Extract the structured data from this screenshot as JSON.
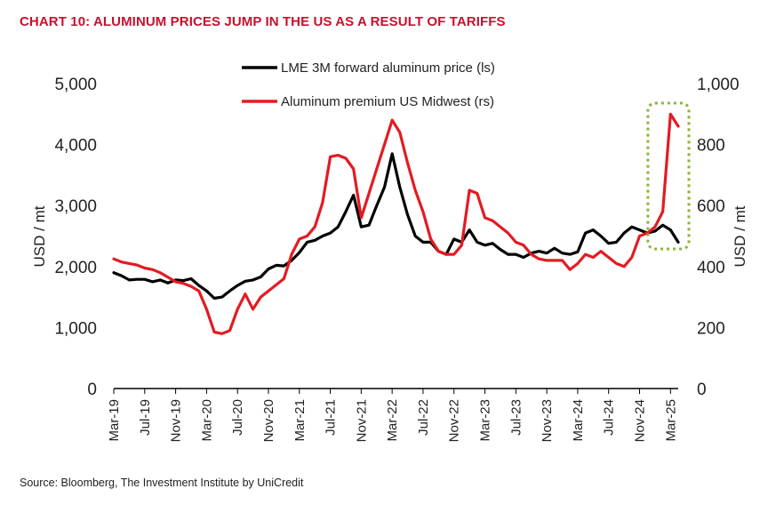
{
  "title": "CHART 10: ALUMINUM PRICES JUMP IN THE US AS A RESULT OF TARIFFS",
  "source": "Source: Bloomberg, The Investment Institute by UniCredit",
  "colors": {
    "title": "#c8102e",
    "series_black": "#000000",
    "series_red": "#e31b23",
    "highlight_box": "#8db33a"
  },
  "chart_data": {
    "type": "line",
    "x_tick_labels": [
      "Mar-19",
      "Jul-19",
      "Nov-19",
      "Mar-20",
      "Jul-20",
      "Nov-20",
      "Mar-21",
      "Jul-21",
      "Nov-21",
      "Mar-22",
      "Jul-22",
      "Nov-22",
      "Mar-23",
      "Jul-23",
      "Nov-23",
      "Mar-24",
      "Jul-24",
      "Nov-24",
      "Mar-25"
    ],
    "x_range": [
      "2019-03",
      "2025-04"
    ],
    "y_left": {
      "label": "USD / mt",
      "lim": [
        0,
        5000
      ],
      "ticks": [
        "0",
        "1,000",
        "2,000",
        "3,000",
        "4,000",
        "5,000"
      ]
    },
    "y_right": {
      "label": "USD / mt",
      "lim": [
        0,
        1000
      ],
      "ticks": [
        "0",
        "200",
        "400",
        "600",
        "800",
        "1,000"
      ]
    },
    "legend_position": "top-center",
    "highlight": {
      "from": "2025-01",
      "to": "2025-04",
      "style": "dashed box"
    },
    "series": [
      {
        "name": "LME 3M forward aluminum price (ls)",
        "axis": "left",
        "color": "#000000",
        "points": [
          [
            "2019-03",
            1900
          ],
          [
            "2019-04",
            1850
          ],
          [
            "2019-05",
            1780
          ],
          [
            "2019-06",
            1790
          ],
          [
            "2019-07",
            1790
          ],
          [
            "2019-08",
            1750
          ],
          [
            "2019-09",
            1780
          ],
          [
            "2019-10",
            1730
          ],
          [
            "2019-11",
            1780
          ],
          [
            "2019-12",
            1770
          ],
          [
            "2020-01",
            1800
          ],
          [
            "2020-02",
            1690
          ],
          [
            "2020-03",
            1600
          ],
          [
            "2020-04",
            1480
          ],
          [
            "2020-05",
            1500
          ],
          [
            "2020-06",
            1600
          ],
          [
            "2020-07",
            1690
          ],
          [
            "2020-08",
            1760
          ],
          [
            "2020-09",
            1780
          ],
          [
            "2020-10",
            1830
          ],
          [
            "2020-11",
            1960
          ],
          [
            "2020-12",
            2020
          ],
          [
            "2021-01",
            2010
          ],
          [
            "2021-02",
            2100
          ],
          [
            "2021-03",
            2230
          ],
          [
            "2021-04",
            2400
          ],
          [
            "2021-05",
            2430
          ],
          [
            "2021-06",
            2500
          ],
          [
            "2021-07",
            2550
          ],
          [
            "2021-08",
            2650
          ],
          [
            "2021-09",
            2900
          ],
          [
            "2021-10",
            3170
          ],
          [
            "2021-11",
            2650
          ],
          [
            "2021-12",
            2680
          ],
          [
            "2022-01",
            3000
          ],
          [
            "2022-02",
            3300
          ],
          [
            "2022-03",
            3850
          ],
          [
            "2022-04",
            3300
          ],
          [
            "2022-05",
            2850
          ],
          [
            "2022-06",
            2500
          ],
          [
            "2022-07",
            2400
          ],
          [
            "2022-08",
            2400
          ],
          [
            "2022-09",
            2250
          ],
          [
            "2022-10",
            2200
          ],
          [
            "2022-11",
            2450
          ],
          [
            "2022-12",
            2400
          ],
          [
            "2023-01",
            2600
          ],
          [
            "2023-02",
            2400
          ],
          [
            "2023-03",
            2350
          ],
          [
            "2023-04",
            2380
          ],
          [
            "2023-05",
            2280
          ],
          [
            "2023-06",
            2200
          ],
          [
            "2023-07",
            2200
          ],
          [
            "2023-08",
            2150
          ],
          [
            "2023-09",
            2220
          ],
          [
            "2023-10",
            2250
          ],
          [
            "2023-11",
            2220
          ],
          [
            "2023-12",
            2300
          ],
          [
            "2024-01",
            2220
          ],
          [
            "2024-02",
            2200
          ],
          [
            "2024-03",
            2240
          ],
          [
            "2024-04",
            2550
          ],
          [
            "2024-05",
            2600
          ],
          [
            "2024-06",
            2500
          ],
          [
            "2024-07",
            2380
          ],
          [
            "2024-08",
            2400
          ],
          [
            "2024-09",
            2550
          ],
          [
            "2024-10",
            2650
          ],
          [
            "2024-11",
            2600
          ],
          [
            "2024-12",
            2550
          ],
          [
            "2025-01",
            2580
          ],
          [
            "2025-02",
            2680
          ],
          [
            "2025-03",
            2600
          ],
          [
            "2025-04",
            2400
          ]
        ]
      },
      {
        "name": "Aluminum premium US Midwest (rs)",
        "axis": "right",
        "color": "#e31b23",
        "points": [
          [
            "2019-03",
            425
          ],
          [
            "2019-04",
            415
          ],
          [
            "2019-05",
            410
          ],
          [
            "2019-06",
            405
          ],
          [
            "2019-07",
            395
          ],
          [
            "2019-08",
            390
          ],
          [
            "2019-09",
            380
          ],
          [
            "2019-10",
            365
          ],
          [
            "2019-11",
            350
          ],
          [
            "2019-12",
            345
          ],
          [
            "2020-01",
            335
          ],
          [
            "2020-02",
            320
          ],
          [
            "2020-03",
            260
          ],
          [
            "2020-04",
            185
          ],
          [
            "2020-05",
            180
          ],
          [
            "2020-06",
            190
          ],
          [
            "2020-07",
            260
          ],
          [
            "2020-08",
            310
          ],
          [
            "2020-09",
            260
          ],
          [
            "2020-10",
            300
          ],
          [
            "2020-11",
            320
          ],
          [
            "2020-12",
            340
          ],
          [
            "2021-01",
            360
          ],
          [
            "2021-02",
            440
          ],
          [
            "2021-03",
            490
          ],
          [
            "2021-04",
            500
          ],
          [
            "2021-05",
            530
          ],
          [
            "2021-06",
            610
          ],
          [
            "2021-07",
            760
          ],
          [
            "2021-08",
            765
          ],
          [
            "2021-09",
            755
          ],
          [
            "2021-10",
            720
          ],
          [
            "2021-11",
            560
          ],
          [
            "2021-12",
            640
          ],
          [
            "2022-01",
            720
          ],
          [
            "2022-02",
            800
          ],
          [
            "2022-03",
            880
          ],
          [
            "2022-04",
            840
          ],
          [
            "2022-05",
            740
          ],
          [
            "2022-06",
            650
          ],
          [
            "2022-07",
            580
          ],
          [
            "2022-08",
            490
          ],
          [
            "2022-09",
            450
          ],
          [
            "2022-10",
            440
          ],
          [
            "2022-11",
            440
          ],
          [
            "2022-12",
            470
          ],
          [
            "2023-01",
            650
          ],
          [
            "2023-02",
            640
          ],
          [
            "2023-03",
            560
          ],
          [
            "2023-04",
            550
          ],
          [
            "2023-05",
            530
          ],
          [
            "2023-06",
            510
          ],
          [
            "2023-07",
            480
          ],
          [
            "2023-08",
            470
          ],
          [
            "2023-09",
            440
          ],
          [
            "2023-10",
            425
          ],
          [
            "2023-11",
            420
          ],
          [
            "2023-12",
            420
          ],
          [
            "2024-01",
            420
          ],
          [
            "2024-02",
            390
          ],
          [
            "2024-03",
            410
          ],
          [
            "2024-04",
            440
          ],
          [
            "2024-05",
            430
          ],
          [
            "2024-06",
            450
          ],
          [
            "2024-07",
            430
          ],
          [
            "2024-08",
            410
          ],
          [
            "2024-09",
            400
          ],
          [
            "2024-10",
            430
          ],
          [
            "2024-11",
            500
          ],
          [
            "2024-12",
            510
          ],
          [
            "2025-01",
            530
          ],
          [
            "2025-02",
            580
          ],
          [
            "2025-03",
            900
          ],
          [
            "2025-04",
            860
          ]
        ]
      }
    ]
  }
}
